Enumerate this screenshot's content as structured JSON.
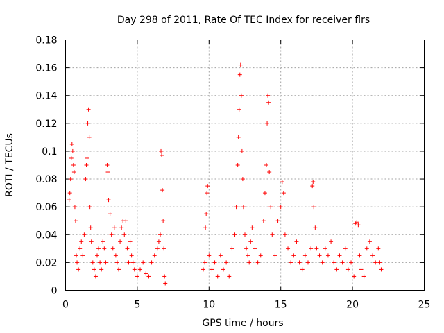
{
  "chart_data": {
    "type": "scatter",
    "title": "Day 298 of 2011, Rate Of TEC Index for receiver flrs",
    "xlabel": "GPS time / hours",
    "ylabel": "ROTI / TECUs",
    "xlim": [
      0,
      25
    ],
    "ylim": [
      0,
      0.18
    ],
    "xticks": [
      "0",
      "5",
      "10",
      "15",
      "20",
      "25"
    ],
    "yticks": [
      "0",
      "0.02",
      "0.04",
      "0.06",
      "0.08",
      "0.1",
      "0.12",
      "0.14",
      "0.16",
      "0.18"
    ],
    "grid": true,
    "marker": "+",
    "color": "#ff0000",
    "series": [
      {
        "points": [
          [
            0.25,
            0.065
          ],
          [
            0.3,
            0.07
          ],
          [
            0.35,
            0.08
          ],
          [
            0.4,
            0.095
          ],
          [
            0.45,
            0.105
          ],
          [
            0.5,
            0.1
          ],
          [
            0.55,
            0.09
          ],
          [
            0.6,
            0.085
          ],
          [
            0.65,
            0.06
          ],
          [
            0.7,
            0.05
          ],
          [
            0.75,
            0.025
          ],
          [
            0.8,
            0.02
          ],
          [
            0.9,
            0.015
          ],
          [
            1.0,
            0.03
          ],
          [
            1.1,
            0.035
          ],
          [
            1.2,
            0.025
          ],
          [
            1.3,
            0.04
          ],
          [
            1.4,
            0.08
          ],
          [
            1.45,
            0.09
          ],
          [
            1.5,
            0.095
          ],
          [
            1.55,
            0.12
          ],
          [
            1.6,
            0.13
          ],
          [
            1.65,
            0.11
          ],
          [
            1.7,
            0.06
          ],
          [
            1.75,
            0.045
          ],
          [
            1.8,
            0.035
          ],
          [
            1.9,
            0.02
          ],
          [
            2.0,
            0.015
          ],
          [
            2.1,
            0.01
          ],
          [
            2.2,
            0.025
          ],
          [
            2.3,
            0.03
          ],
          [
            2.4,
            0.02
          ],
          [
            2.5,
            0.015
          ],
          [
            2.6,
            0.035
          ],
          [
            2.7,
            0.03
          ],
          [
            2.8,
            0.02
          ],
          [
            2.9,
            0.09
          ],
          [
            2.95,
            0.085
          ],
          [
            3.0,
            0.065
          ],
          [
            3.1,
            0.055
          ],
          [
            3.2,
            0.04
          ],
          [
            3.3,
            0.03
          ],
          [
            3.4,
            0.045
          ],
          [
            3.5,
            0.025
          ],
          [
            3.6,
            0.02
          ],
          [
            3.7,
            0.015
          ],
          [
            3.8,
            0.035
          ],
          [
            3.9,
            0.045
          ],
          [
            4.0,
            0.05
          ],
          [
            4.1,
            0.04
          ],
          [
            4.2,
            0.05
          ],
          [
            4.3,
            0.03
          ],
          [
            4.4,
            0.02
          ],
          [
            4.5,
            0.035
          ],
          [
            4.6,
            0.025
          ],
          [
            4.7,
            0.02
          ],
          [
            4.8,
            0.015
          ],
          [
            5.0,
            0.01
          ],
          [
            5.2,
            0.015
          ],
          [
            5.4,
            0.02
          ],
          [
            5.6,
            0.012
          ],
          [
            5.8,
            0.01
          ],
          [
            6.0,
            0.02
          ],
          [
            6.2,
            0.025
          ],
          [
            6.4,
            0.03
          ],
          [
            6.5,
            0.035
          ],
          [
            6.6,
            0.04
          ],
          [
            6.65,
            0.1
          ],
          [
            6.7,
            0.097
          ],
          [
            6.75,
            0.072
          ],
          [
            6.8,
            0.05
          ],
          [
            6.85,
            0.03
          ],
          [
            6.9,
            0.01
          ],
          [
            6.95,
            0.005
          ],
          [
            9.6,
            0.015
          ],
          [
            9.7,
            0.02
          ],
          [
            9.75,
            0.045
          ],
          [
            9.8,
            0.055
          ],
          [
            9.85,
            0.07
          ],
          [
            9.9,
            0.075
          ],
          [
            10.0,
            0.025
          ],
          [
            10.2,
            0.015
          ],
          [
            10.4,
            0.02
          ],
          [
            10.6,
            0.01
          ],
          [
            10.8,
            0.025
          ],
          [
            11.0,
            0.015
          ],
          [
            11.2,
            0.02
          ],
          [
            11.4,
            0.01
          ],
          [
            11.6,
            0.03
          ],
          [
            11.8,
            0.04
          ],
          [
            11.9,
            0.06
          ],
          [
            12.0,
            0.09
          ],
          [
            12.05,
            0.11
          ],
          [
            12.1,
            0.13
          ],
          [
            12.15,
            0.155
          ],
          [
            12.2,
            0.162
          ],
          [
            12.25,
            0.14
          ],
          [
            12.3,
            0.1
          ],
          [
            12.35,
            0.08
          ],
          [
            12.4,
            0.06
          ],
          [
            12.5,
            0.04
          ],
          [
            12.6,
            0.03
          ],
          [
            12.7,
            0.025
          ],
          [
            12.8,
            0.02
          ],
          [
            12.9,
            0.035
          ],
          [
            13.0,
            0.045
          ],
          [
            13.2,
            0.03
          ],
          [
            13.4,
            0.02
          ],
          [
            13.6,
            0.025
          ],
          [
            13.8,
            0.05
          ],
          [
            13.9,
            0.07
          ],
          [
            14.0,
            0.09
          ],
          [
            14.05,
            0.12
          ],
          [
            14.1,
            0.14
          ],
          [
            14.15,
            0.135
          ],
          [
            14.2,
            0.085
          ],
          [
            14.3,
            0.06
          ],
          [
            14.4,
            0.04
          ],
          [
            14.6,
            0.025
          ],
          [
            14.8,
            0.05
          ],
          [
            15.0,
            0.06
          ],
          [
            15.1,
            0.078
          ],
          [
            15.2,
            0.07
          ],
          [
            15.3,
            0.04
          ],
          [
            15.5,
            0.03
          ],
          [
            15.7,
            0.02
          ],
          [
            15.9,
            0.025
          ],
          [
            16.1,
            0.035
          ],
          [
            16.3,
            0.02
          ],
          [
            16.5,
            0.015
          ],
          [
            16.7,
            0.025
          ],
          [
            16.9,
            0.02
          ],
          [
            17.1,
            0.03
          ],
          [
            17.2,
            0.075
          ],
          [
            17.25,
            0.078
          ],
          [
            17.3,
            0.06
          ],
          [
            17.4,
            0.045
          ],
          [
            17.5,
            0.03
          ],
          [
            17.7,
            0.025
          ],
          [
            17.9,
            0.02
          ],
          [
            18.1,
            0.03
          ],
          [
            18.3,
            0.025
          ],
          [
            18.5,
            0.035
          ],
          [
            18.7,
            0.02
          ],
          [
            18.9,
            0.015
          ],
          [
            19.1,
            0.025
          ],
          [
            19.3,
            0.02
          ],
          [
            19.5,
            0.03
          ],
          [
            19.7,
            0.015
          ],
          [
            19.9,
            0.02
          ],
          [
            20.1,
            0.01
          ],
          [
            20.2,
            0.048
          ],
          [
            20.3,
            0.049
          ],
          [
            20.4,
            0.047
          ],
          [
            20.5,
            0.025
          ],
          [
            20.6,
            0.015
          ],
          [
            20.8,
            0.01
          ],
          [
            21.0,
            0.03
          ],
          [
            21.2,
            0.035
          ],
          [
            21.4,
            0.025
          ],
          [
            21.6,
            0.02
          ],
          [
            21.8,
            0.03
          ],
          [
            21.9,
            0.02
          ],
          [
            22.0,
            0.015
          ]
        ]
      }
    ]
  }
}
